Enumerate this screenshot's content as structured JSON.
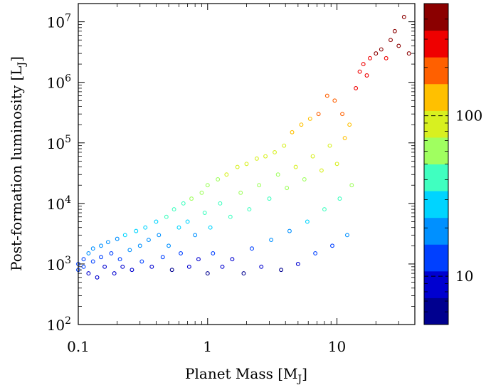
{
  "chart_data": {
    "type": "scatter",
    "title": "",
    "xlabel_main": "Planet Mass [M",
    "xlabel_sub": "J",
    "xlabel_close": "]",
    "ylabel_main": "Post-formation luminosity [L",
    "ylabel_sub": "J",
    "ylabel_close": "]",
    "xscale": "log",
    "yscale": "log",
    "xlim": [
      0.1,
      40
    ],
    "ylim": [
      100,
      20000000
    ],
    "x_ticks": [
      {
        "value": 0.1,
        "label": "0.1"
      },
      {
        "value": 1,
        "label": "1"
      },
      {
        "value": 10,
        "label": "10"
      }
    ],
    "y_ticks": [
      {
        "value": 100,
        "base": "10",
        "exp": "2"
      },
      {
        "value": 1000,
        "base": "10",
        "exp": "3"
      },
      {
        "value": 10000,
        "base": "10",
        "exp": "4"
      },
      {
        "value": 100000,
        "base": "10",
        "exp": "5"
      },
      {
        "value": 1000000,
        "base": "10",
        "exp": "6"
      },
      {
        "value": 10000000,
        "base": "10",
        "exp": "7"
      }
    ],
    "marker": "open-circle",
    "colorbar": {
      "scale": "log",
      "range": [
        5,
        500
      ],
      "colormap": "jet",
      "levels": [
        "#00008f",
        "#0000d0",
        "#0040ff",
        "#0090ff",
        "#00d4ff",
        "#40ffc0",
        "#a0ff60",
        "#d8f020",
        "#ffc000",
        "#ff6000",
        "#ef0000",
        "#8b0000"
      ],
      "ticks": [
        {
          "value": 10,
          "label": "10"
        },
        {
          "value": 100,
          "label": "100"
        }
      ]
    },
    "series": [
      {
        "points": [
          [
            0.1,
            1000,
            14
          ],
          [
            0.1,
            800,
            12
          ],
          [
            0.11,
            1200,
            15
          ],
          [
            0.11,
            900,
            11
          ],
          [
            0.12,
            1500,
            17
          ],
          [
            0.12,
            700,
            9
          ],
          [
            0.13,
            1800,
            18
          ],
          [
            0.13,
            1100,
            13
          ],
          [
            0.14,
            600,
            8
          ],
          [
            0.15,
            2000,
            19
          ],
          [
            0.15,
            1300,
            14
          ],
          [
            0.16,
            900,
            10
          ],
          [
            0.17,
            2300,
            20
          ],
          [
            0.18,
            1500,
            15
          ],
          [
            0.19,
            700,
            8
          ],
          [
            0.2,
            2600,
            22
          ],
          [
            0.21,
            1200,
            12
          ],
          [
            0.22,
            900,
            9
          ],
          [
            0.23,
            3000,
            24
          ],
          [
            0.25,
            1700,
            16
          ],
          [
            0.26,
            800,
            8
          ],
          [
            0.28,
            3500,
            26
          ],
          [
            0.3,
            2000,
            17
          ],
          [
            0.31,
            1100,
            11
          ],
          [
            0.33,
            4000,
            28
          ],
          [
            0.35,
            2500,
            20
          ],
          [
            0.37,
            900,
            8
          ],
          [
            0.4,
            5000,
            32
          ],
          [
            0.42,
            3000,
            22
          ],
          [
            0.45,
            1300,
            12
          ],
          [
            0.48,
            6000,
            35
          ],
          [
            0.5,
            2000,
            16
          ],
          [
            0.53,
            800,
            7
          ],
          [
            0.55,
            8000,
            42
          ],
          [
            0.6,
            4000,
            27
          ],
          [
            0.62,
            1500,
            13
          ],
          [
            0.65,
            10000,
            48
          ],
          [
            0.7,
            5000,
            32
          ],
          [
            0.72,
            900,
            8
          ],
          [
            0.75,
            12000,
            52
          ],
          [
            0.8,
            3000,
            22
          ],
          [
            0.85,
            1200,
            10
          ],
          [
            0.9,
            15000,
            60
          ],
          [
            0.95,
            7000,
            38
          ],
          [
            1.0,
            700,
            7
          ],
          [
            1.0,
            20000,
            65
          ],
          [
            1.05,
            4000,
            27
          ],
          [
            1.1,
            1500,
            12
          ],
          [
            1.2,
            25000,
            70
          ],
          [
            1.25,
            10000,
            45
          ],
          [
            1.3,
            900,
            8
          ],
          [
            1.4,
            30000,
            75
          ],
          [
            1.5,
            6000,
            35
          ],
          [
            1.55,
            1200,
            10
          ],
          [
            1.7,
            40000,
            82
          ],
          [
            1.8,
            15000,
            58
          ],
          [
            1.9,
            700,
            7
          ],
          [
            2.0,
            45000,
            85
          ],
          [
            2.1,
            8000,
            40
          ],
          [
            2.2,
            1800,
            14
          ],
          [
            2.4,
            55000,
            90
          ],
          [
            2.5,
            20000,
            65
          ],
          [
            2.6,
            900,
            8
          ],
          [
            2.8,
            60000,
            92
          ],
          [
            3.0,
            12000,
            50
          ],
          [
            3.1,
            2500,
            18
          ],
          [
            3.3,
            70000,
            95
          ],
          [
            3.5,
            30000,
            72
          ],
          [
            3.7,
            800,
            7
          ],
          [
            3.9,
            90000,
            105
          ],
          [
            4.1,
            18000,
            60
          ],
          [
            4.3,
            3500,
            22
          ],
          [
            4.5,
            150000,
            130
          ],
          [
            4.8,
            40000,
            80
          ],
          [
            5.0,
            1000,
            9
          ],
          [
            5.3,
            200000,
            140
          ],
          [
            5.6,
            25000,
            66
          ],
          [
            5.9,
            5000,
            30
          ],
          [
            6.2,
            250000,
            150
          ],
          [
            6.5,
            60000,
            90
          ],
          [
            6.8,
            1500,
            12
          ],
          [
            7.2,
            300000,
            160
          ],
          [
            7.6,
            35000,
            75
          ],
          [
            8.0,
            8000,
            40
          ],
          [
            8.4,
            600000,
            220
          ],
          [
            8.8,
            90000,
            105
          ],
          [
            9.2,
            2000,
            15
          ],
          [
            9.6,
            500000,
            200
          ],
          [
            10,
            45000,
            82
          ],
          [
            10.5,
            12000,
            50
          ],
          [
            11,
            300000,
            160
          ],
          [
            11.5,
            120000,
            115
          ],
          [
            12,
            3000,
            20
          ],
          [
            12.5,
            200000,
            140
          ],
          [
            13,
            20000,
            62
          ],
          [
            14,
            800000,
            250
          ],
          [
            15,
            1500000,
            300
          ],
          [
            16,
            2000000,
            320
          ],
          [
            17,
            1300000,
            290
          ],
          [
            18,
            2500000,
            340
          ],
          [
            20,
            3000000,
            360
          ],
          [
            22,
            3500000,
            380
          ],
          [
            24,
            2500000,
            340
          ],
          [
            26,
            5000000,
            420
          ],
          [
            28,
            7000000,
            450
          ],
          [
            30,
            4000000,
            400
          ],
          [
            33,
            12000000,
            480
          ],
          [
            36,
            3000000,
            360
          ]
        ]
      }
    ]
  }
}
